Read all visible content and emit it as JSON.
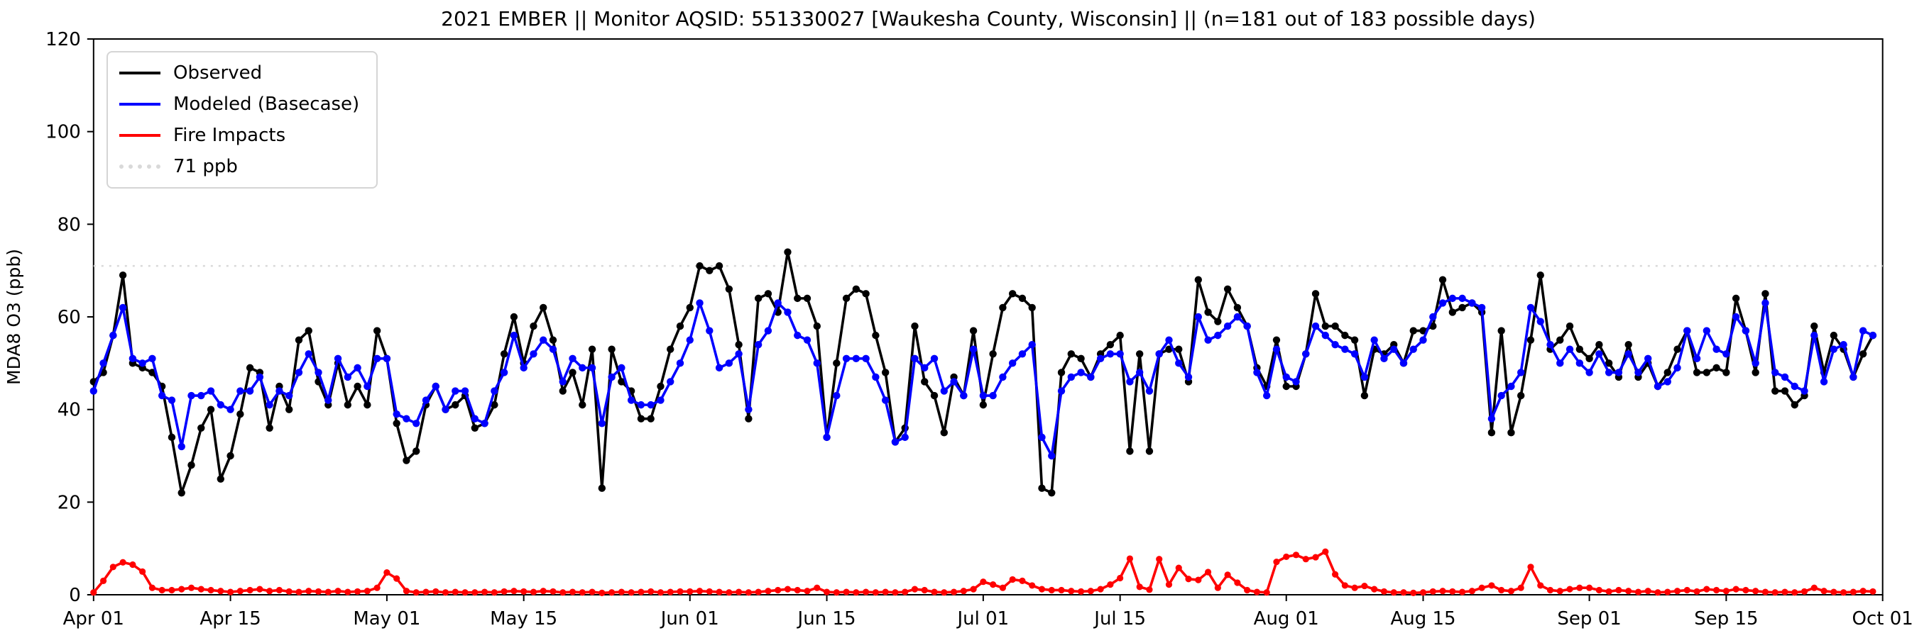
{
  "title": "2021 EMBER || Monitor AQSID: 551330027 [Waukesha County, Wisconsin] || (n=181 out of 183 possible days)",
  "legend": {
    "items": [
      {
        "label": "Observed",
        "color": "#000000",
        "style": "solid"
      },
      {
        "label": "Modeled (Basecase)",
        "color": "#0000ff",
        "style": "solid"
      },
      {
        "label": "Fire Impacts",
        "color": "#ff0000",
        "style": "solid"
      },
      {
        "label": "71 ppb",
        "color": "#d9d9d9",
        "style": "dotted"
      }
    ]
  },
  "chart_data": {
    "type": "line",
    "title": "2021 EMBER || Monitor AQSID: 551330027 [Waukesha County, Wisconsin] || (n=181 out of 183 possible days)",
    "xlabel": "",
    "ylabel": "MDA8 O3 (ppb)",
    "ylim": [
      0,
      120
    ],
    "yticks": [
      0,
      20,
      40,
      60,
      80,
      100,
      120
    ],
    "threshold": {
      "label": "71 ppb",
      "value": 71,
      "color": "#d9d9d9"
    },
    "x_span_days": 183,
    "xticks": [
      {
        "label": "Apr 01",
        "index": 0
      },
      {
        "label": "Apr 15",
        "index": 14
      },
      {
        "label": "May 01",
        "index": 30
      },
      {
        "label": "May 15",
        "index": 44
      },
      {
        "label": "Jun 01",
        "index": 61
      },
      {
        "label": "Jun 15",
        "index": 75
      },
      {
        "label": "Jul 01",
        "index": 91
      },
      {
        "label": "Jul 15",
        "index": 105
      },
      {
        "label": "Aug 01",
        "index": 122
      },
      {
        "label": "Aug 15",
        "index": 136
      },
      {
        "label": "Sep 01",
        "index": 153
      },
      {
        "label": "Sep 15",
        "index": 167
      },
      {
        "label": "Oct 01",
        "index": 183
      }
    ],
    "series": [
      {
        "name": "Observed",
        "color": "#000000",
        "values": [
          46,
          48,
          56,
          69,
          50,
          49,
          48,
          45,
          34,
          22,
          28,
          36,
          40,
          25,
          30,
          39,
          49,
          48,
          36,
          45,
          40,
          55,
          57,
          46,
          41,
          50,
          41,
          45,
          41,
          57,
          51,
          37,
          29,
          31,
          41,
          45,
          40,
          41,
          43,
          36,
          37,
          41,
          52,
          60,
          50,
          58,
          62,
          55,
          44,
          48,
          41,
          53,
          23,
          53,
          46,
          44,
          38,
          38,
          45,
          53,
          58,
          62,
          71,
          70,
          71,
          66,
          54,
          38,
          64,
          65,
          61,
          74,
          64,
          64,
          58,
          34,
          50,
          64,
          66,
          65,
          56,
          48,
          33,
          36,
          58,
          46,
          43,
          35,
          47,
          43,
          57,
          41,
          52,
          62,
          65,
          64,
          62,
          23,
          22,
          48,
          52,
          51,
          47,
          52,
          54,
          56,
          31,
          52,
          31,
          52,
          53,
          53,
          46,
          68,
          61,
          59,
          66,
          62,
          58,
          49,
          45,
          55,
          45,
          45,
          52,
          65,
          58,
          58,
          56,
          55,
          43,
          53,
          52,
          54,
          50,
          57,
          57,
          58,
          68,
          61,
          62,
          63,
          61,
          35,
          57,
          35,
          43,
          55,
          69,
          53,
          55,
          58,
          53,
          51,
          54,
          50,
          47,
          54,
          47,
          50,
          45,
          48,
          53,
          57,
          48,
          48,
          49,
          48,
          64,
          57,
          48,
          65,
          44,
          44,
          41,
          43,
          58,
          48,
          56,
          53,
          47,
          52,
          56
        ]
      },
      {
        "name": "Modeled (Basecase)",
        "color": "#0000ff",
        "values": [
          44,
          50,
          56,
          62,
          51,
          50,
          51,
          43,
          42,
          32,
          43,
          43,
          44,
          41,
          40,
          44,
          44,
          47,
          41,
          44,
          43,
          48,
          52,
          48,
          42,
          51,
          47,
          49,
          45,
          51,
          51,
          39,
          38,
          37,
          42,
          45,
          40,
          44,
          44,
          38,
          37,
          44,
          48,
          56,
          49,
          52,
          55,
          53,
          46,
          51,
          49,
          49,
          37,
          47,
          49,
          42,
          41,
          41,
          42,
          46,
          50,
          55,
          63,
          57,
          49,
          50,
          52,
          40,
          54,
          57,
          63,
          61,
          56,
          55,
          50,
          34,
          43,
          51,
          51,
          51,
          47,
          42,
          33,
          34,
          51,
          49,
          51,
          44,
          46,
          43,
          53,
          43,
          43,
          47,
          50,
          52,
          54,
          34,
          30,
          44,
          47,
          48,
          47,
          51,
          52,
          52,
          46,
          48,
          44,
          52,
          55,
          50,
          47,
          60,
          55,
          56,
          58,
          60,
          58,
          48,
          43,
          53,
          47,
          46,
          52,
          58,
          56,
          54,
          53,
          52,
          47,
          55,
          51,
          53,
          50,
          53,
          55,
          60,
          63,
          64,
          64,
          63,
          62,
          38,
          43,
          45,
          48,
          62,
          59,
          54,
          50,
          53,
          50,
          48,
          52,
          48,
          48,
          52,
          48,
          51,
          45,
          46,
          49,
          57,
          51,
          57,
          53,
          52,
          60,
          57,
          50,
          63,
          48,
          47,
          45,
          44,
          56,
          46,
          53,
          54,
          47,
          57,
          56
        ]
      },
      {
        "name": "Fire Impacts",
        "color": "#ff0000",
        "values": [
          0.5,
          3,
          6,
          7,
          6.5,
          5,
          1.5,
          1,
          1,
          1.2,
          1.5,
          1.2,
          1,
          0.8,
          0.6,
          0.8,
          1,
          1.2,
          0.8,
          1,
          0.7,
          0.6,
          0.8,
          0.7,
          0.6,
          0.8,
          0.6,
          0.7,
          0.8,
          1.5,
          4.8,
          3.5,
          0.8,
          0.5,
          0.6,
          0.7,
          0.5,
          0.6,
          0.5,
          0.5,
          0.6,
          0.5,
          0.7,
          0.8,
          0.7,
          0.6,
          0.8,
          0.7,
          0.5,
          0.6,
          0.5,
          0.6,
          0.4,
          0.5,
          0.6,
          0.5,
          0.6,
          0.7,
          0.5,
          0.6,
          0.7,
          0.7,
          0.8,
          0.7,
          0.6,
          0.5,
          0.6,
          0.5,
          0.6,
          0.8,
          1,
          1.2,
          1,
          0.8,
          1.5,
          0.6,
          0.5,
          0.6,
          0.5,
          0.6,
          0.5,
          0.6,
          0.5,
          0.6,
          1.2,
          1,
          0.6,
          0.5,
          0.6,
          0.8,
          1.2,
          2.8,
          2.2,
          1.5,
          3.3,
          3,
          2,
          1.2,
          1,
          1,
          0.8,
          0.7,
          0.8,
          1.2,
          2.2,
          3.6,
          7.8,
          1.7,
          1.1,
          7.7,
          2.2,
          5.8,
          3.4,
          3.2,
          4.9,
          1.5,
          4.3,
          2.6,
          1,
          0.6,
          0.5,
          7.1,
          8.2,
          8.6,
          7.7,
          8.1,
          9.3,
          4.4,
          2,
          1.5,
          1.9,
          1.2,
          0.7,
          0.5,
          0.5,
          0.4,
          0.5,
          0.7,
          0.8,
          0.7,
          0.6,
          0.8,
          1.5,
          2,
          1,
          0.8,
          1.5,
          6,
          2,
          1,
          0.8,
          1.2,
          1.5,
          1.5,
          1,
          0.7,
          1,
          0.8,
          0.6,
          0.8,
          0.5,
          0.6,
          0.8,
          1,
          0.7,
          1.2,
          1,
          0.8,
          1.2,
          1,
          0.8,
          0.6,
          0.5,
          0.6,
          0.5,
          0.7,
          1.5,
          0.8,
          0.6,
          0.5,
          0.6,
          0.8,
          0.7
        ]
      }
    ]
  }
}
